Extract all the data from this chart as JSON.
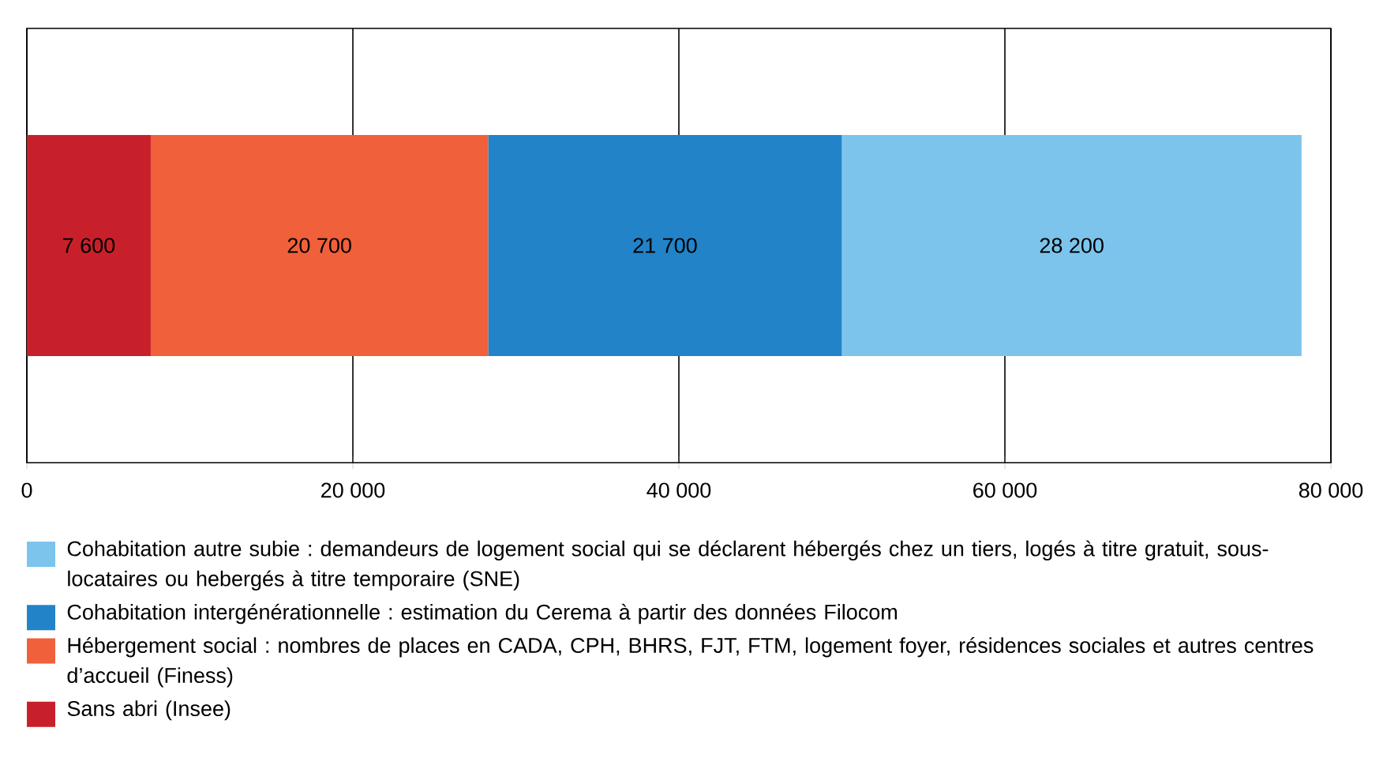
{
  "chart_data": {
    "type": "bar",
    "orientation": "horizontal",
    "stacked": true,
    "categories": [
      null
    ],
    "series": [
      {
        "name": "Sans abri (Insee)",
        "color": "#c8202a",
        "values": [
          7600
        ],
        "value_labels": [
          "7 600"
        ]
      },
      {
        "name": "Hébergement social : nombres de places en CADA, CPH, BHRS, FJT, FTM, logement foyer, résidences sociales et autres centres d’accueil (Finess)",
        "color": "#f0603a",
        "values": [
          20700
        ],
        "value_labels": [
          "20 700"
        ]
      },
      {
        "name": "Cohabitation intergénérationnelle : estimation du Cerema à partir des données Filocom",
        "color": "#2283c8",
        "values": [
          21700
        ],
        "value_labels": [
          "21 700"
        ]
      },
      {
        "name": "Cohabitation autre subie : demandeurs de logement social qui se déclarent hébergés chez un tiers, logés à titre gratuit, sous-locataires ou hebergés à titre temporaire (SNE)",
        "color": "#7cc4ec",
        "values": [
          28200
        ],
        "value_labels": [
          "28 200"
        ]
      }
    ],
    "xlim": [
      0,
      80000
    ],
    "xticks": [
      0,
      {
        "value": 20000,
        "label": "20 000"
      },
      {
        "value": 40000,
        "label": "40 000"
      },
      {
        "value": 60000,
        "label": "60 000"
      },
      {
        "value": 80000,
        "label": "80 000"
      }
    ],
    "grid": "x",
    "legend": "bottom"
  }
}
